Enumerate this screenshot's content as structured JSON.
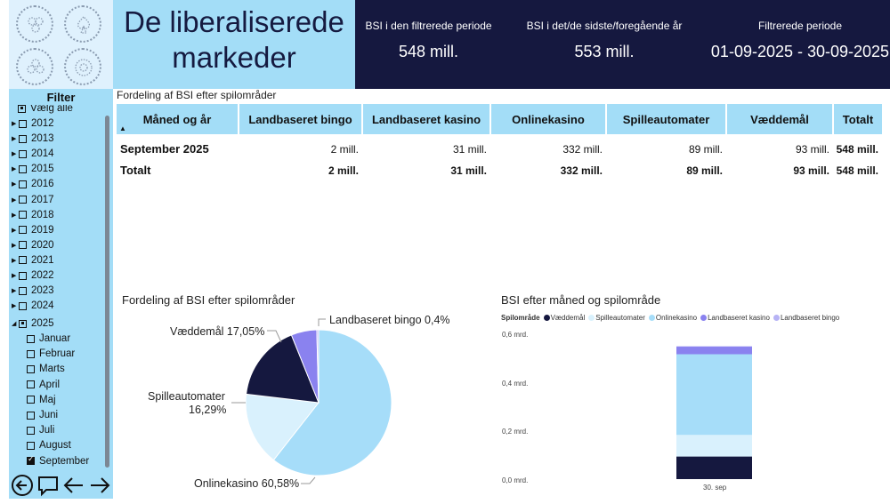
{
  "header": {
    "title_line1": "De liberaliserede",
    "title_line2": "markeder",
    "kpis": [
      {
        "label": "BSI i den filtrerede periode",
        "value": "548 mill."
      },
      {
        "label": "BSI i det/de sidste/foregående år",
        "value": "553 mill."
      },
      {
        "label": "Filtrerede periode",
        "value": "01-09-2025 - 30-09-2025"
      }
    ]
  },
  "filter": {
    "title": "Filter",
    "select_all": "Vælg alle",
    "years": [
      "2012",
      "2013",
      "2014",
      "2015",
      "2016",
      "2017",
      "2018",
      "2019",
      "2020",
      "2021",
      "2022",
      "2023",
      "2024"
    ],
    "expanded_year": "2025",
    "months": [
      "Januar",
      "Februar",
      "Marts",
      "April",
      "Maj",
      "Juni",
      "Juli",
      "August",
      "September"
    ],
    "checked_month": "September"
  },
  "table": {
    "caption": "Fordeling af BSI efter spilområder",
    "headers": [
      "Måned og år",
      "Landbaseret bingo",
      "Landbaseret kasino",
      "Onlinekasino",
      "Spilleautomater",
      "Væddemål",
      "Totalt"
    ],
    "rows": [
      {
        "label": "September 2025",
        "values": [
          "2 mill.",
          "31 mill.",
          "332 mill.",
          "89 mill.",
          "93 mill.",
          "548 mill."
        ]
      },
      {
        "label": "Totalt",
        "values": [
          "2 mill.",
          "31 mill.",
          "332 mill.",
          "89 mill.",
          "93 mill.",
          "548 mill."
        ]
      }
    ]
  },
  "pie": {
    "title": "Fordeling af BSI efter spilområder",
    "labels": {
      "bingo": "Landbaseret bingo 0,4%",
      "vaeddemaal": "Væddemål 17,05%",
      "spilleautomater_1": "Spilleautomater",
      "spilleautomater_2": "16,29%",
      "onlinekasino": "Onlinekasino 60,58%"
    }
  },
  "bar": {
    "title": "BSI efter måned og spilområde",
    "legend_title": "Spilområde",
    "legend": [
      "Væddemål",
      "Spilleautomater",
      "Onlinekasino",
      "Landbaseret kasino",
      "Landbaseret bingo"
    ],
    "y_ticks": [
      "0,6 mrd.",
      "0,4 mrd.",
      "0,2 mrd.",
      "0,0 mrd."
    ],
    "x_label": "30. sep"
  },
  "colors": {
    "navy": "#15183f",
    "light_blue": "#a3ddf7",
    "onlinekasino": "#a6ddf9",
    "spilleautomater": "#d9f1fd",
    "vaeddemaal": "#15183f",
    "kasino": "#8a82ef",
    "bingo": "#b7b3f5"
  },
  "chart_data": [
    {
      "type": "pie",
      "title": "Fordeling af BSI efter spilområder",
      "categories": [
        "Onlinekasino",
        "Spilleautomater",
        "Væddemål",
        "Landbaseret kasino",
        "Landbaseret bingo"
      ],
      "values": [
        60.58,
        16.29,
        17.05,
        5.68,
        0.4
      ]
    },
    {
      "type": "bar",
      "title": "BSI efter måned og spilområde",
      "categories": [
        "30. sep"
      ],
      "series": [
        {
          "name": "Væddemål",
          "values": [
            0.093
          ]
        },
        {
          "name": "Spilleautomater",
          "values": [
            0.089
          ]
        },
        {
          "name": "Onlinekasino",
          "values": [
            0.332
          ]
        },
        {
          "name": "Landbaseret kasino",
          "values": [
            0.031
          ]
        },
        {
          "name": "Landbaseret bingo",
          "values": [
            0.002
          ]
        }
      ],
      "ylabel": "",
      "xlabel": "",
      "ylim": [
        0,
        0.6
      ]
    }
  ]
}
